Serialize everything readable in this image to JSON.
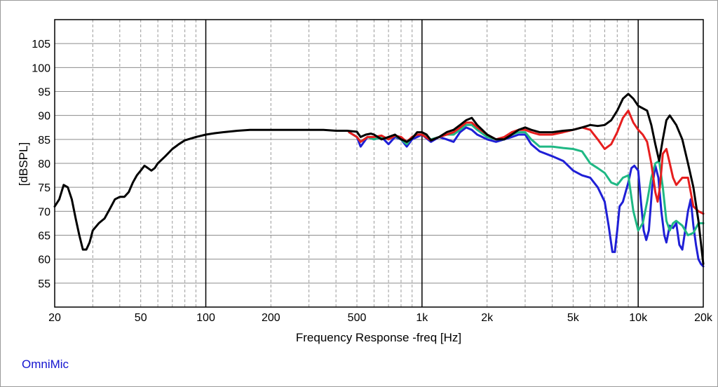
{
  "brand": "OmniMic",
  "chart_data": {
    "type": "line",
    "xlabel": "Frequency Response -freq [Hz]",
    "ylabel": "[dBSPL]",
    "x_scale": "log",
    "xlim": [
      20,
      20000
    ],
    "ylim": [
      50,
      110
    ],
    "grid": true,
    "x_ticks": [
      {
        "value": 20,
        "label": "20"
      },
      {
        "value": 50,
        "label": "50"
      },
      {
        "value": 100,
        "label": "100"
      },
      {
        "value": 200,
        "label": "200"
      },
      {
        "value": 500,
        "label": "500"
      },
      {
        "value": 1000,
        "label": "1k"
      },
      {
        "value": 2000,
        "label": "2k"
      },
      {
        "value": 5000,
        "label": "5k"
      },
      {
        "value": 10000,
        "label": "10k"
      },
      {
        "value": 20000,
        "label": "20k"
      }
    ],
    "y_ticks": [
      55,
      60,
      65,
      70,
      75,
      80,
      85,
      90,
      95,
      100,
      105
    ],
    "series": [
      {
        "color": "#1f1fd6",
        "points": [
          [
            460,
            86.5
          ],
          [
            500,
            85.5
          ],
          [
            520,
            83.5
          ],
          [
            560,
            85.5
          ],
          [
            600,
            85
          ],
          [
            650,
            85.5
          ],
          [
            700,
            84
          ],
          [
            750,
            85.5
          ],
          [
            800,
            85
          ],
          [
            850,
            83.5
          ],
          [
            900,
            85
          ],
          [
            950,
            85.5
          ],
          [
            1000,
            86
          ],
          [
            1100,
            84.5
          ],
          [
            1200,
            85.5
          ],
          [
            1300,
            85
          ],
          [
            1400,
            84.5
          ],
          [
            1500,
            86.5
          ],
          [
            1600,
            87.5
          ],
          [
            1700,
            87
          ],
          [
            1800,
            86
          ],
          [
            1900,
            85.5
          ],
          [
            2000,
            85
          ],
          [
            2200,
            84.5
          ],
          [
            2400,
            85
          ],
          [
            2600,
            85.5
          ],
          [
            2800,
            86
          ],
          [
            3000,
            86
          ],
          [
            3200,
            84
          ],
          [
            3500,
            82.5
          ],
          [
            4000,
            81.5
          ],
          [
            4500,
            80.5
          ],
          [
            5000,
            78.5
          ],
          [
            5500,
            77.5
          ],
          [
            6000,
            77
          ],
          [
            6500,
            75
          ],
          [
            7000,
            72
          ],
          [
            7300,
            67
          ],
          [
            7600,
            61.5
          ],
          [
            7800,
            61.5
          ],
          [
            8000,
            66
          ],
          [
            8200,
            71
          ],
          [
            8500,
            72
          ],
          [
            9000,
            76
          ],
          [
            9300,
            79
          ],
          [
            9600,
            79.5
          ],
          [
            10000,
            78.5
          ],
          [
            10300,
            72
          ],
          [
            10600,
            66
          ],
          [
            10900,
            64
          ],
          [
            11200,
            66
          ],
          [
            11600,
            75
          ],
          [
            12000,
            79.5
          ],
          [
            12400,
            77
          ],
          [
            12800,
            70
          ],
          [
            13200,
            65
          ],
          [
            13500,
            63.5
          ],
          [
            14000,
            67
          ],
          [
            14500,
            66.5
          ],
          [
            15000,
            67.5
          ],
          [
            15500,
            63
          ],
          [
            16000,
            62
          ],
          [
            16500,
            66
          ],
          [
            17000,
            70
          ],
          [
            17500,
            72.5
          ],
          [
            18000,
            67
          ],
          [
            18500,
            63
          ],
          [
            19000,
            60
          ],
          [
            19500,
            59
          ],
          [
            20000,
            58.5
          ]
        ]
      },
      {
        "color": "#1fb884",
        "points": [
          [
            460,
            86.5
          ],
          [
            500,
            85.5
          ],
          [
            520,
            84.5
          ],
          [
            560,
            85.5
          ],
          [
            600,
            85
          ],
          [
            650,
            85.5
          ],
          [
            700,
            85
          ],
          [
            750,
            85.8
          ],
          [
            800,
            85
          ],
          [
            850,
            84
          ],
          [
            900,
            85.5
          ],
          [
            950,
            86
          ],
          [
            1000,
            86
          ],
          [
            1100,
            85
          ],
          [
            1200,
            85.5
          ],
          [
            1300,
            86
          ],
          [
            1400,
            86
          ],
          [
            1500,
            87
          ],
          [
            1600,
            88
          ],
          [
            1700,
            88
          ],
          [
            1800,
            87
          ],
          [
            2000,
            85.5
          ],
          [
            2200,
            85
          ],
          [
            2400,
            85
          ],
          [
            2600,
            86
          ],
          [
            2800,
            86.5
          ],
          [
            3000,
            86.5
          ],
          [
            3200,
            85
          ],
          [
            3500,
            83.5
          ],
          [
            4000,
            83.5
          ],
          [
            4500,
            83.2
          ],
          [
            5000,
            83
          ],
          [
            5500,
            82.5
          ],
          [
            6000,
            80
          ],
          [
            6500,
            79
          ],
          [
            7000,
            78
          ],
          [
            7500,
            76
          ],
          [
            8000,
            75.5
          ],
          [
            8500,
            77
          ],
          [
            9000,
            77.5
          ],
          [
            9500,
            70
          ],
          [
            10000,
            66
          ],
          [
            10500,
            67.5
          ],
          [
            11000,
            72
          ],
          [
            11500,
            77
          ],
          [
            12000,
            80
          ],
          [
            12500,
            80.5
          ],
          [
            13000,
            75
          ],
          [
            13500,
            68
          ],
          [
            14000,
            66
          ],
          [
            14500,
            67.5
          ],
          [
            15000,
            68
          ],
          [
            16000,
            67
          ],
          [
            17000,
            65
          ],
          [
            18000,
            65.5
          ],
          [
            19000,
            67.5
          ],
          [
            20000,
            67.5
          ]
        ]
      },
      {
        "color": "#e61e1e",
        "points": [
          [
            460,
            86.5
          ],
          [
            500,
            85.5
          ],
          [
            520,
            84.5
          ],
          [
            560,
            85.5
          ],
          [
            600,
            85.5
          ],
          [
            650,
            85.8
          ],
          [
            700,
            85
          ],
          [
            750,
            85.8
          ],
          [
            800,
            85.5
          ],
          [
            850,
            84.5
          ],
          [
            900,
            85.5
          ],
          [
            950,
            86
          ],
          [
            1000,
            86
          ],
          [
            1100,
            84.8
          ],
          [
            1200,
            85.5
          ],
          [
            1300,
            86
          ],
          [
            1400,
            86.5
          ],
          [
            1500,
            87.5
          ],
          [
            1600,
            88.5
          ],
          [
            1700,
            88.5
          ],
          [
            1800,
            87.5
          ],
          [
            2000,
            86
          ],
          [
            2200,
            85
          ],
          [
            2400,
            85.5
          ],
          [
            2600,
            86.5
          ],
          [
            2800,
            87
          ],
          [
            3000,
            87
          ],
          [
            3200,
            86.5
          ],
          [
            3500,
            86
          ],
          [
            4000,
            86
          ],
          [
            4500,
            86.5
          ],
          [
            5000,
            87
          ],
          [
            5500,
            87.5
          ],
          [
            6000,
            87
          ],
          [
            6500,
            85
          ],
          [
            7000,
            83
          ],
          [
            7500,
            84
          ],
          [
            8000,
            86.5
          ],
          [
            8500,
            89.5
          ],
          [
            9000,
            91
          ],
          [
            9500,
            88.5
          ],
          [
            10000,
            87
          ],
          [
            10500,
            86
          ],
          [
            11000,
            84.5
          ],
          [
            11500,
            80
          ],
          [
            12000,
            74
          ],
          [
            12300,
            72
          ],
          [
            12600,
            75
          ],
          [
            13000,
            82
          ],
          [
            13500,
            83
          ],
          [
            14000,
            80
          ],
          [
            14500,
            77
          ],
          [
            15000,
            75.5
          ],
          [
            16000,
            77
          ],
          [
            17000,
            77
          ],
          [
            17500,
            74
          ],
          [
            18000,
            71
          ],
          [
            19000,
            70
          ],
          [
            20000,
            69.5
          ]
        ]
      },
      {
        "color": "#000000",
        "points": [
          [
            20,
            71
          ],
          [
            21,
            72.5
          ],
          [
            22,
            75.5
          ],
          [
            23,
            75
          ],
          [
            24,
            72.5
          ],
          [
            25,
            68.5
          ],
          [
            26,
            65
          ],
          [
            27,
            62
          ],
          [
            28,
            62
          ],
          [
            29,
            63.5
          ],
          [
            30,
            66
          ],
          [
            32,
            67.5
          ],
          [
            34,
            68.5
          ],
          [
            36,
            70.5
          ],
          [
            38,
            72.5
          ],
          [
            40,
            73
          ],
          [
            42,
            73
          ],
          [
            44,
            74
          ],
          [
            46,
            76
          ],
          [
            48,
            77.5
          ],
          [
            50,
            78.5
          ],
          [
            52,
            79.5
          ],
          [
            54,
            79
          ],
          [
            56,
            78.5
          ],
          [
            58,
            79
          ],
          [
            60,
            80
          ],
          [
            65,
            81.5
          ],
          [
            70,
            83
          ],
          [
            75,
            84
          ],
          [
            80,
            84.8
          ],
          [
            90,
            85.5
          ],
          [
            100,
            86
          ],
          [
            110,
            86.3
          ],
          [
            120,
            86.5
          ],
          [
            140,
            86.8
          ],
          [
            160,
            87
          ],
          [
            200,
            87
          ],
          [
            250,
            87
          ],
          [
            300,
            87
          ],
          [
            350,
            87
          ],
          [
            400,
            86.8
          ],
          [
            450,
            86.8
          ],
          [
            500,
            86.6
          ],
          [
            520,
            85.5
          ],
          [
            550,
            86
          ],
          [
            580,
            86.2
          ],
          [
            600,
            86
          ],
          [
            650,
            85
          ],
          [
            700,
            85.5
          ],
          [
            750,
            86
          ],
          [
            800,
            85
          ],
          [
            850,
            84.5
          ],
          [
            900,
            85.2
          ],
          [
            950,
            86.5
          ],
          [
            1000,
            86.5
          ],
          [
            1050,
            86
          ],
          [
            1100,
            84.8
          ],
          [
            1200,
            85.5
          ],
          [
            1300,
            86.5
          ],
          [
            1400,
            87
          ],
          [
            1500,
            88
          ],
          [
            1600,
            89
          ],
          [
            1700,
            89.5
          ],
          [
            1800,
            88
          ],
          [
            1900,
            87
          ],
          [
            2000,
            86
          ],
          [
            2200,
            85
          ],
          [
            2400,
            85
          ],
          [
            2600,
            86
          ],
          [
            2800,
            87
          ],
          [
            3000,
            87.5
          ],
          [
            3200,
            87
          ],
          [
            3500,
            86.5
          ],
          [
            4000,
            86.5
          ],
          [
            4500,
            86.8
          ],
          [
            5000,
            87
          ],
          [
            5500,
            87.5
          ],
          [
            6000,
            88
          ],
          [
            6500,
            87.8
          ],
          [
            7000,
            88
          ],
          [
            7500,
            89
          ],
          [
            8000,
            91
          ],
          [
            8500,
            93.5
          ],
          [
            9000,
            94.5
          ],
          [
            9500,
            93.5
          ],
          [
            10000,
            92
          ],
          [
            11000,
            91
          ],
          [
            11500,
            88
          ],
          [
            12000,
            84
          ],
          [
            12500,
            80.5
          ],
          [
            13000,
            85
          ],
          [
            13500,
            89
          ],
          [
            14000,
            90
          ],
          [
            14500,
            89
          ],
          [
            15000,
            88
          ],
          [
            16000,
            85
          ],
          [
            17000,
            80
          ],
          [
            18000,
            75
          ],
          [
            19000,
            68
          ],
          [
            20000,
            59
          ]
        ]
      }
    ]
  }
}
